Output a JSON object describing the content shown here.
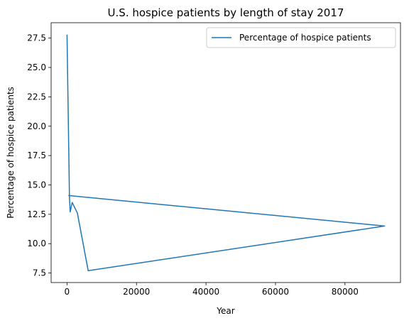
{
  "chart_data": {
    "type": "line",
    "title": "U.S. hospice patients by length of stay 2017",
    "xlabel": "Year",
    "ylabel": "Percentage of hospice patients",
    "xlim": [
      -4570,
      95970
    ],
    "ylim": [
      6.69,
      28.81
    ],
    "xticks": [
      0,
      20000,
      40000,
      60000,
      80000
    ],
    "xtick_labels": [
      "0",
      "20000",
      "40000",
      "60000",
      "80000"
    ],
    "yticks": [
      7.5,
      10.0,
      12.5,
      15.0,
      17.5,
      20.0,
      22.5,
      25.0,
      27.5
    ],
    "ytick_labels": [
      "7.5",
      "10.0",
      "12.5",
      "15.0",
      "17.5",
      "20.0",
      "22.5",
      "25.0",
      "27.5"
    ],
    "grid": false,
    "legend_position": "upper right",
    "series": [
      {
        "name": "Percentage of hospice patients",
        "color": "#1f77b4",
        "x": [
          0,
          700,
          900,
          1500,
          3000,
          6100,
          91400,
          400
        ],
        "y": [
          27.8,
          14.0,
          12.7,
          13.5,
          12.6,
          7.7,
          11.5,
          14.1
        ]
      }
    ]
  }
}
